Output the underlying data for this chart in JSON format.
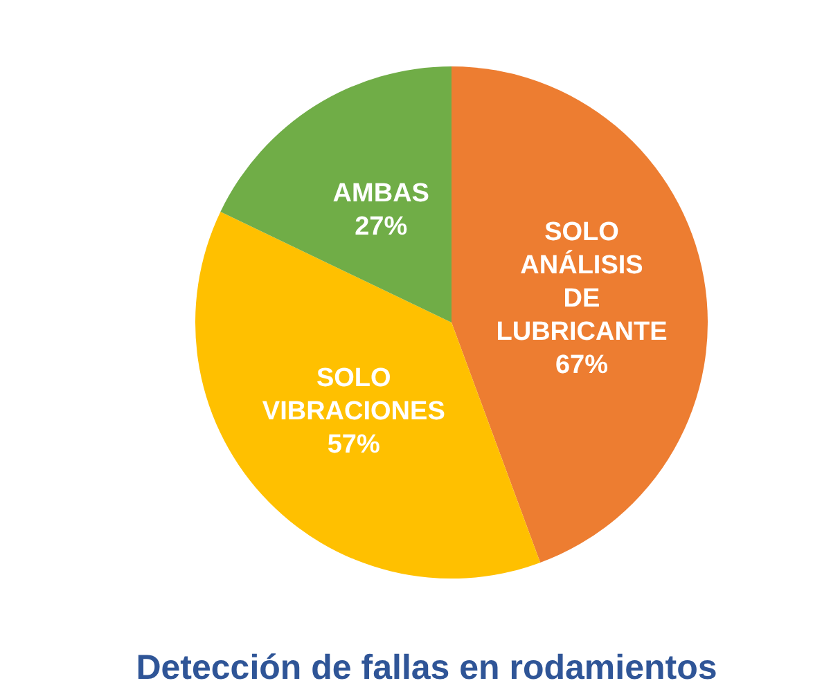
{
  "chart_data": {
    "type": "pie",
    "title": "Detección de fallas en rodamientos",
    "categories": [
      "SOLO\nANÁLISIS\nDE\nLUBRICANTE",
      "SOLO\nVIBRACIONES",
      "AMBAS"
    ],
    "values": [
      67,
      57,
      27
    ],
    "value_labels": [
      "67%",
      "57%",
      "27%"
    ],
    "colors": [
      "#ed7d31",
      "#ffc000",
      "#70ad47"
    ],
    "legend": false
  }
}
